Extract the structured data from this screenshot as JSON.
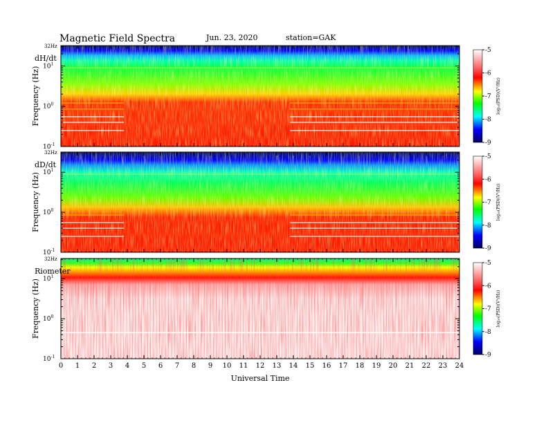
{
  "header": {
    "title": "Magnetic  Field  Spectra",
    "date": "Jun. 23, 2020",
    "station": "station=GAK"
  },
  "chart_data": {
    "type": "heatmap",
    "x": {
      "label": "Universal Time",
      "range": [
        0,
        24
      ],
      "ticks": [
        "0",
        "1",
        "2",
        "3",
        "4",
        "5",
        "6",
        "7",
        "8",
        "9",
        "10",
        "11",
        "12",
        "13",
        "14",
        "15",
        "16",
        "17",
        "18",
        "19",
        "20",
        "21",
        "22",
        "23",
        "24"
      ]
    },
    "y": {
      "label": "Frequency  (Hz)",
      "scale": "log",
      "range": [
        0.1,
        32
      ],
      "top_label": "32Hz",
      "tick_bases": [
        "10",
        "10",
        "10"
      ],
      "tick_exps": [
        "1",
        "0",
        "-1"
      ],
      "tick_values": [
        10,
        1,
        0.1
      ]
    },
    "colorbar": {
      "label": "log₁₀(PSD)(V²/Hz)",
      "ticks": [
        "-5",
        "-6",
        "-7",
        "-8",
        "-9"
      ],
      "tick_values": [
        -5,
        -6,
        -7,
        -8,
        -9
      ],
      "range": [
        -9,
        -5
      ],
      "colors": [
        "#000080",
        "#0000ff",
        "#00ffff",
        "#00ff00",
        "#ffff00",
        "#ff0000",
        "#ffffff"
      ]
    },
    "panels": [
      {
        "label": "dH/dt",
        "description_levels": [
          {
            "band": "31-20 Hz",
            "log_psd": -8.8
          },
          {
            "band": "20-10 Hz",
            "log_psd": -7.5
          },
          {
            "band": "10-1.5 Hz",
            "log_psd": -6.8
          },
          {
            "band": "1.5-0.1 Hz",
            "log_psd": -6.2
          }
        ],
        "active_interval_ut": [
          3.8,
          13.8
        ]
      },
      {
        "label": "dD/dt",
        "description_levels": [
          {
            "band": "31-20 Hz",
            "log_psd": -8.8
          },
          {
            "band": "20-10 Hz",
            "log_psd": -7.6
          },
          {
            "band": "10-1.5 Hz",
            "log_psd": -7.0
          },
          {
            "band": "1.5-0.1 Hz",
            "log_psd": -6.2
          }
        ],
        "active_interval_ut": [
          3.8,
          13.8
        ]
      },
      {
        "label": "Riometer",
        "description_levels": [
          {
            "band": "31-15 Hz",
            "log_psd": -7.2
          },
          {
            "band": "15-10 Hz",
            "log_psd": -6.2
          },
          {
            "band": "10-0.1 Hz",
            "log_psd": -5.2
          }
        ],
        "active_interval_ut": [
          0,
          24
        ]
      }
    ]
  }
}
